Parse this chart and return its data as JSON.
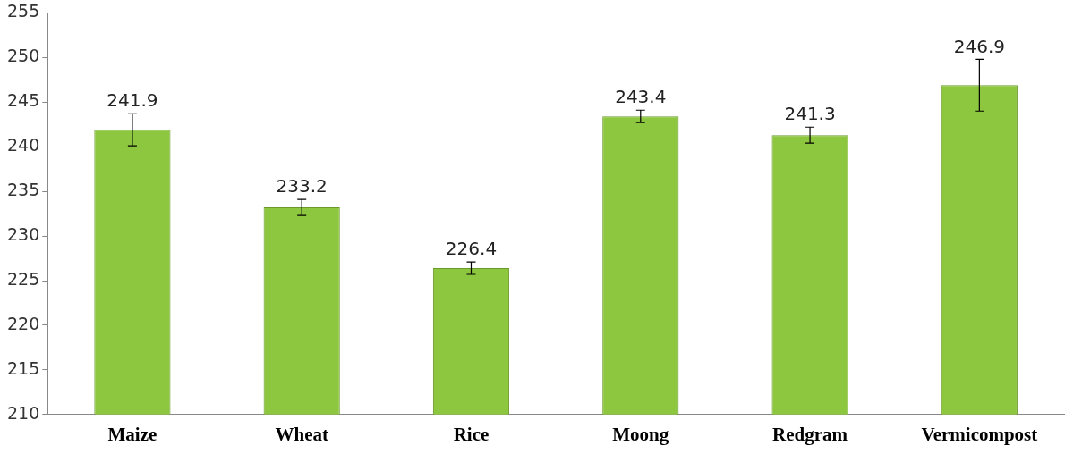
{
  "chart_data": {
    "type": "bar",
    "categories": [
      "Maize",
      "Wheat",
      "Rice",
      "Moong",
      "Redgram",
      "Vermicompost"
    ],
    "values": [
      241.9,
      233.2,
      226.4,
      243.4,
      241.3,
      246.9
    ],
    "errors": [
      1.8,
      0.9,
      0.7,
      0.7,
      0.9,
      2.9
    ],
    "color": "#8dc63f",
    "data_labels": true,
    "ylim": [
      210,
      255
    ],
    "yticks": [
      210,
      215,
      220,
      225,
      230,
      235,
      240,
      245,
      250,
      255
    ],
    "grid": false,
    "legend": false
  }
}
